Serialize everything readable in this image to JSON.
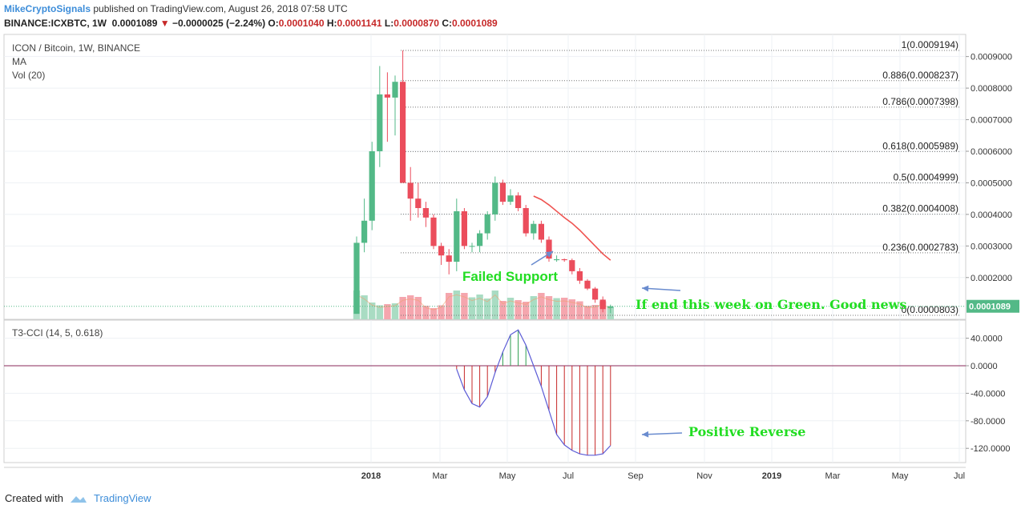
{
  "header": {
    "brand": "MikeCryptoSignals",
    "published": "published on TradingView.com, August 26, 2018 07:58 UTC",
    "symbol": "BINANCE:ICXBTC, 1W",
    "last": "0.0001089",
    "change": "−0.0000025 (−2.24%)",
    "o_label": "O:",
    "o": "0.0001040",
    "h_label": "H:",
    "h": "0.0001141",
    "l_label": "L:",
    "l": "0.0000870",
    "c_label": "C:",
    "c": "0.0001089"
  },
  "pane_labels": {
    "title": "ICON / Bitcoin, 1W, BINANCE",
    "ma": "MA",
    "vol": "Vol (20)",
    "cci": "T3-CCI (14, 5, 0.618)"
  },
  "footer": {
    "created_with": "Created with",
    "tradingview": "TradingView"
  },
  "annotations": {
    "failed_support": "Failed Support",
    "green_news": "If end this week on Green. Good news",
    "positive_reverse": "Positive Reverse"
  },
  "colors": {
    "up": "#53b987",
    "down": "#eb4d5c",
    "up_vol": "#a9dcc3",
    "down_vol": "#f5a6ae",
    "ma": "#ef5350",
    "annotation": "#22dd22",
    "arrow": "#6a8ccf",
    "cci_line": "#5b5bd6"
  },
  "chart_data": [
    {
      "type": "candlestick",
      "title": "ICON / Bitcoin, 1W, BINANCE",
      "x_ticks": [
        "2018",
        "Mar",
        "May",
        "Jul",
        "Sep",
        "Nov",
        "2019",
        "Mar",
        "May",
        "Jul"
      ],
      "y_ticks": [
        "0.0009000",
        "0.0008000",
        "0.0007000",
        "0.0006000",
        "0.0005000",
        "0.0004000",
        "0.0003000",
        "0.0002000"
      ],
      "ylim": [
        8e-05,
        0.00096
      ],
      "last_price": "0.0001089",
      "candles": [
        {
          "o": 8.5e-05,
          "h": 0.00033,
          "l": 8.5e-05,
          "c": 0.00031
        },
        {
          "o": 0.00031,
          "h": 0.00045,
          "l": 0.00028,
          "c": 0.00038
        },
        {
          "o": 0.00038,
          "h": 0.00063,
          "l": 0.00035,
          "c": 0.0006
        },
        {
          "o": 0.0006,
          "h": 0.00087,
          "l": 0.00055,
          "c": 0.00078
        },
        {
          "o": 0.00078,
          "h": 0.00085,
          "l": 0.00063,
          "c": 0.00077
        },
        {
          "o": 0.00077,
          "h": 0.00084,
          "l": 0.00065,
          "c": 0.00082
        },
        {
          "o": 0.00082,
          "h": 0.0009194,
          "l": 0.0005,
          "c": 0.0005
        },
        {
          "o": 0.0005,
          "h": 0.00055,
          "l": 0.00038,
          "c": 0.00045
        },
        {
          "o": 0.00045,
          "h": 0.0005,
          "l": 0.00039,
          "c": 0.00042
        },
        {
          "o": 0.00042,
          "h": 0.00044,
          "l": 0.00036,
          "c": 0.00039
        },
        {
          "o": 0.00039,
          "h": 0.0004,
          "l": 0.00029,
          "c": 0.0003
        },
        {
          "o": 0.0003,
          "h": 0.00031,
          "l": 0.00024,
          "c": 0.00027
        },
        {
          "o": 0.00027,
          "h": 0.00029,
          "l": 0.00021,
          "c": 0.00025
        },
        {
          "o": 0.00025,
          "h": 0.00045,
          "l": 0.00022,
          "c": 0.00041
        },
        {
          "o": 0.00041,
          "h": 0.00042,
          "l": 0.00029,
          "c": 0.0003
        },
        {
          "o": 0.0003,
          "h": 0.00031,
          "l": 0.00028,
          "c": 0.0003
        },
        {
          "o": 0.0003,
          "h": 0.00035,
          "l": 0.00028,
          "c": 0.00034
        },
        {
          "o": 0.00034,
          "h": 0.00041,
          "l": 0.00032,
          "c": 0.0004
        },
        {
          "o": 0.0004,
          "h": 0.00052,
          "l": 0.00038,
          "c": 0.0005
        },
        {
          "o": 0.0005,
          "h": 0.00051,
          "l": 0.00043,
          "c": 0.00044
        },
        {
          "o": 0.00044,
          "h": 0.00048,
          "l": 0.00043,
          "c": 0.00046
        },
        {
          "o": 0.00046,
          "h": 0.00047,
          "l": 0.00041,
          "c": 0.00042
        },
        {
          "o": 0.00042,
          "h": 0.00043,
          "l": 0.00033,
          "c": 0.00034
        },
        {
          "o": 0.00034,
          "h": 0.00038,
          "l": 0.00032,
          "c": 0.00037
        },
        {
          "o": 0.00037,
          "h": 0.00038,
          "l": 0.00031,
          "c": 0.00032
        },
        {
          "o": 0.00032,
          "h": 0.00033,
          "l": 0.00025,
          "c": 0.00026
        },
        {
          "o": 0.000255,
          "h": 0.00027,
          "l": 0.00025,
          "c": 0.000258
        },
        {
          "o": 0.000258,
          "h": 0.00026,
          "l": 0.00025,
          "c": 0.000255
        },
        {
          "o": 0.000255,
          "h": 0.00026,
          "l": 0.00021,
          "c": 0.00022
        },
        {
          "o": 0.00022,
          "h": 0.00023,
          "l": 0.00018,
          "c": 0.00019
        },
        {
          "o": 0.00019,
          "h": 0.000195,
          "l": 0.00016,
          "c": 0.000165
        },
        {
          "o": 0.000165,
          "h": 0.00017,
          "l": 0.00012,
          "c": 0.00013
        },
        {
          "o": 0.00013,
          "h": 0.00014,
          "l": 9e-05,
          "c": 0.0001
        },
        {
          "o": 0.000104,
          "h": 0.0001141,
          "l": 8.7e-05,
          "c": 0.0001089
        }
      ],
      "volume": [
        0.72,
        0.6,
        0.42,
        0.35,
        0.38,
        0.4,
        0.56,
        0.6,
        0.56,
        0.34,
        0.28,
        0.35,
        0.66,
        0.72,
        0.66,
        0.55,
        0.62,
        0.52,
        0.72,
        0.46,
        0.54,
        0.48,
        0.44,
        0.58,
        0.66,
        0.58,
        0.53,
        0.54,
        0.5,
        0.45,
        0.34,
        0.36,
        0.45,
        0.3
      ],
      "moving_average": [
        {
          "i": 23,
          "v": 0.000458
        },
        {
          "i": 24,
          "v": 0.000447
        },
        {
          "i": 25,
          "v": 0.00043
        },
        {
          "i": 26,
          "v": 0.00041
        },
        {
          "i": 27,
          "v": 0.00039
        },
        {
          "i": 28,
          "v": 0.000372
        },
        {
          "i": 29,
          "v": 0.00035
        },
        {
          "i": 30,
          "v": 0.000325
        },
        {
          "i": 31,
          "v": 0.0003
        },
        {
          "i": 32,
          "v": 0.000275
        },
        {
          "i": 33,
          "v": 0.000255
        }
      ],
      "fib_levels": [
        {
          "label": "1(0.0009194)",
          "v": 0.0009194
        },
        {
          "label": "0.886(0.0008237)",
          "v": 0.0008237
        },
        {
          "label": "0.786(0.0007398)",
          "v": 0.0007398
        },
        {
          "label": "0.618(0.0005989)",
          "v": 0.0005989
        },
        {
          "label": "0.5(0.0004999)",
          "v": 0.0004999
        },
        {
          "label": "0.382(0.0004008)",
          "v": 0.0004008
        },
        {
          "label": "0.236(0.0002783)",
          "v": 0.0002783
        },
        {
          "label": "0(0.0000803)",
          "v": 8.03e-05
        }
      ]
    },
    {
      "type": "line",
      "title": "T3-CCI (14, 5, 0.618)",
      "y_ticks": [
        "40.0000",
        "0.0000",
        "-40.0000",
        "-80.0000",
        "-120.0000"
      ],
      "ylim": [
        -140,
        55
      ],
      "series": [
        {
          "start_index": 13,
          "values": [
            -5,
            -35,
            -55,
            -60,
            -45,
            -10,
            20,
            45,
            52,
            30,
            0,
            -30,
            -65,
            -100,
            -115,
            -123,
            -128,
            -130,
            -130,
            -128,
            -116
          ]
        }
      ]
    }
  ]
}
